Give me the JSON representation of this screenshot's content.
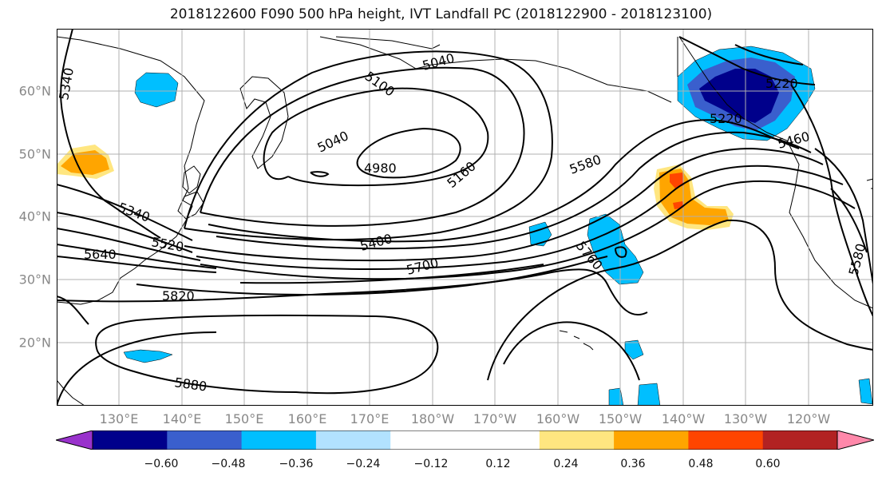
{
  "title": "2018122600 F090 500 hPa height, IVT Landfall PC (2018122900 - 2018123100)",
  "map": {
    "lat_labels": [
      "60°N",
      "50°N",
      "40°N",
      "30°N",
      "20°N"
    ],
    "lon_labels": [
      "130°E",
      "140°E",
      "150°E",
      "160°E",
      "170°E",
      "180°W",
      "170°W",
      "160°W",
      "150°W",
      "140°W",
      "130°W",
      "120°W"
    ],
    "contour_labels": [
      "5340",
      "5100",
      "5040",
      "5040",
      "4980",
      "5220",
      "5220",
      "5460",
      "5580",
      "5160",
      "5340",
      "5520",
      "5640",
      "5400",
      "5700",
      "5760",
      "5580",
      "5820",
      "5880"
    ],
    "extent": {
      "lon_min": 120,
      "lon_max": 250.5,
      "lat_min": 10,
      "lat_max": 70
    },
    "gridline_color": "#b0b0b0",
    "contour_color": "#000000"
  },
  "colorbar": {
    "colors": [
      "#9932cc",
      "#00008b",
      "#3a5fcd",
      "#00bfff",
      "#b2e2ff",
      "#ffffff",
      "#ffffff",
      "#ffe680",
      "#ffa500",
      "#ff4500",
      "#b22222",
      "#ff88aa"
    ],
    "labels": [
      "−0.60",
      "−0.48",
      "−0.36",
      "−0.24",
      "−0.12",
      "0.12",
      "0.24",
      "0.36",
      "0.48",
      "0.60"
    ]
  }
}
